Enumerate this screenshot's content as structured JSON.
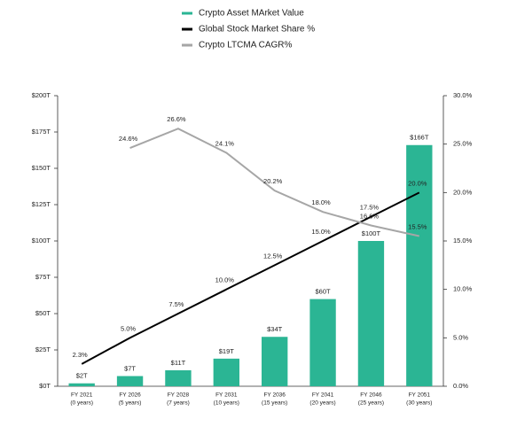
{
  "chart_data": {
    "type": "combo",
    "categories": [
      "FY 2021",
      "FY 2026",
      "FY 2028",
      "FY 2031",
      "FY 2036",
      "FY 2041",
      "FY 2046",
      "FY 2051"
    ],
    "category_sublabels": [
      "(0 years)",
      "(5 years)",
      "(7 years)",
      "(10 years)",
      "(15 years)",
      "(20 years)",
      "(25 years)",
      "(30 years)"
    ],
    "series": [
      {
        "name": "Crypto Asset MArket Value",
        "type": "bar",
        "color": "#2bb594",
        "values": [
          2,
          7,
          11,
          19,
          34,
          60,
          100,
          166
        ],
        "value_labels": [
          "$2T",
          "$7T",
          "$11T",
          "$19T",
          "$34T",
          "$60T",
          "$100T",
          "$166T"
        ]
      },
      {
        "name": "Global Stock Market Share %",
        "type": "line",
        "axis": "y2",
        "color": "#000000",
        "values": [
          2.3,
          5.0,
          7.5,
          10.0,
          12.5,
          15.0,
          17.5,
          20.0
        ],
        "value_labels": [
          "2.3%",
          "5.0%",
          "7.5%",
          "10.0%",
          "12.5%",
          "15.0%",
          "17.5%",
          "20.0%"
        ]
      },
      {
        "name": "Crypto LTCMA CAGR%",
        "type": "line",
        "axis": "y2",
        "color": "#a6a6a6",
        "values": [
          null,
          24.6,
          26.6,
          24.1,
          20.2,
          18.0,
          16.6,
          15.5
        ],
        "value_labels": [
          null,
          "24.6%",
          "26.6%",
          "24.1%",
          "20.2%",
          "18.0%",
          "16.6%",
          "15.5%"
        ]
      }
    ],
    "ylim": [
      0,
      200
    ],
    "yticks": [
      {
        "value": 0,
        "label": "$0T"
      },
      {
        "value": 25,
        "label": "$25T"
      },
      {
        "value": 50,
        "label": "$50T"
      },
      {
        "value": 75,
        "label": "$75T"
      },
      {
        "value": 100,
        "label": "$100T"
      },
      {
        "value": 125,
        "label": "$125T"
      },
      {
        "value": 150,
        "label": "$150T"
      },
      {
        "value": 175,
        "label": "$175T"
      },
      {
        "value": 200,
        "label": "$200T"
      }
    ],
    "y2lim": [
      0,
      30
    ],
    "y2ticks": [
      {
        "value": 0,
        "label": "0.0%"
      },
      {
        "value": 5,
        "label": "5.0%"
      },
      {
        "value": 10,
        "label": "10.0%"
      },
      {
        "value": 15,
        "label": "15.0%"
      },
      {
        "value": 20,
        "label": "20.0%"
      },
      {
        "value": 25,
        "label": "25.0%"
      },
      {
        "value": 30,
        "label": "30.0%"
      }
    ],
    "grid": false
  }
}
